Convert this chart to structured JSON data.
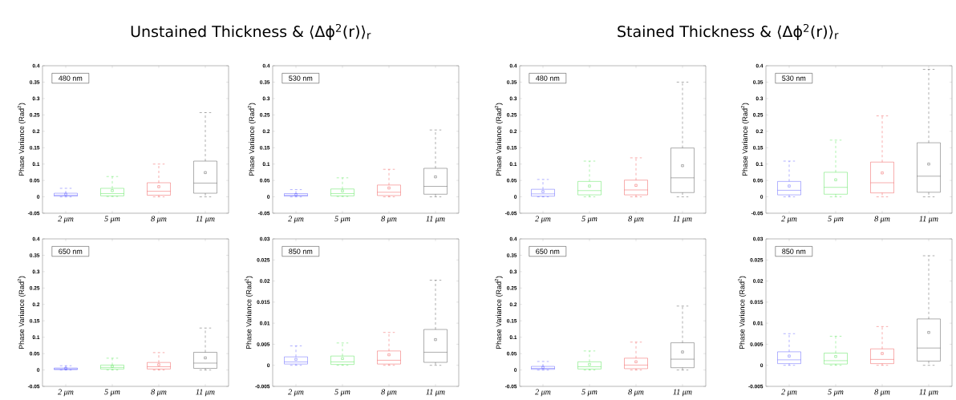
{
  "chart_data": [
    {
      "type": "box",
      "title": "Unstained Thickness & ⟨Δϕ$^{2}$(r)⟩$_{r}$",
      "ylabel": "Phase Variance (Rad$^{2}$)",
      "annotations": [
        "480 nm"
      ],
      "categories": [
        "2 μm",
        "5 μm",
        "8 μm",
        "11 μm"
      ],
      "colors": [
        "#3f3fff",
        "#33dd33",
        "#ee3333",
        "#333333"
      ],
      "marker": "square",
      "ylim": [
        -0.05,
        0.4
      ],
      "yticks": [
        -0.05,
        0,
        0.05,
        0.1,
        0.15,
        0.2,
        0.25,
        0.3,
        0.35,
        0.4
      ],
      "boxes": [
        {
          "low": 0,
          "q1": 0.002,
          "median": 0.005,
          "q3": 0.011,
          "high": 0.026,
          "mean": 0.008
        },
        {
          "low": 0.001,
          "q1": 0.003,
          "median": 0.01,
          "q3": 0.026,
          "high": 0.062,
          "mean": 0.019
        },
        {
          "low": 0,
          "q1": 0.005,
          "median": 0.017,
          "q3": 0.043,
          "high": 0.1,
          "mean": 0.031
        },
        {
          "low": 0,
          "q1": 0.011,
          "median": 0.042,
          "q3": 0.109,
          "high": 0.257,
          "mean": 0.074
        }
      ]
    },
    {
      "type": "box",
      "ylabel": "Phase Variance (Rad$^{2}$)",
      "annotations": [
        "530 nm"
      ],
      "categories": [
        "2 μm",
        "5 μm",
        "8 μm",
        "11 μm"
      ],
      "colors": [
        "#3f3fff",
        "#33dd33",
        "#ee3333",
        "#333333"
      ],
      "marker": "square",
      "ylim": [
        -0.05,
        0.4
      ],
      "yticks": [
        -0.05,
        0,
        0.05,
        0.1,
        0.15,
        0.2,
        0.25,
        0.3,
        0.35,
        0.4
      ],
      "boxes": [
        {
          "low": 0,
          "q1": 0.002,
          "median": 0.005,
          "q3": 0.01,
          "high": 0.022,
          "mean": 0.007
        },
        {
          "low": 0.001,
          "q1": 0.003,
          "median": 0.01,
          "q3": 0.024,
          "high": 0.058,
          "mean": 0.018
        },
        {
          "low": 0,
          "q1": 0.004,
          "median": 0.014,
          "q3": 0.036,
          "high": 0.084,
          "mean": 0.027
        },
        {
          "low": 0,
          "q1": 0.008,
          "median": 0.032,
          "q3": 0.087,
          "high": 0.204,
          "mean": 0.061
        }
      ]
    },
    {
      "type": "box",
      "title": "Stained Thickness & ⟨Δϕ$^{2}$(r)⟩$_{r}$",
      "ylabel": "Phase Variance (Rad$^{2}$)",
      "annotations": [
        "480 nm"
      ],
      "categories": [
        "2 μm",
        "5 μm",
        "8 μm",
        "11 μm"
      ],
      "colors": [
        "#3f3fff",
        "#33dd33",
        "#ee3333",
        "#333333"
      ],
      "marker": "square",
      "ylim": [
        -0.05,
        0.4
      ],
      "yticks": [
        -0.05,
        0,
        0.05,
        0.1,
        0.15,
        0.2,
        0.25,
        0.3,
        0.35,
        0.4
      ],
      "boxes": [
        {
          "low": 0,
          "q1": 0.002,
          "median": 0.009,
          "q3": 0.023,
          "high": 0.053,
          "mean": 0.016
        },
        {
          "low": 0,
          "q1": 0.006,
          "median": 0.019,
          "q3": 0.047,
          "high": 0.109,
          "mean": 0.033
        },
        {
          "low": 0,
          "q1": 0.006,
          "median": 0.021,
          "q3": 0.051,
          "high": 0.119,
          "mean": 0.035
        },
        {
          "low": 0,
          "q1": 0.013,
          "median": 0.058,
          "q3": 0.149,
          "high": 0.35,
          "mean": 0.095
        }
      ]
    },
    {
      "type": "box",
      "ylabel": "Phase Variance (Rad$^{2}$)",
      "annotations": [
        "530 nm"
      ],
      "categories": [
        "2 μm",
        "5 μm",
        "8 μm",
        "11 μm"
      ],
      "colors": [
        "#3f3fff",
        "#33dd33",
        "#ee3333",
        "#333333"
      ],
      "marker": "square",
      "ylim": [
        -0.05,
        0.4
      ],
      "yticks": [
        -0.05,
        0,
        0.05,
        0.1,
        0.15,
        0.2,
        0.25,
        0.3,
        0.35,
        0.4
      ],
      "boxes": [
        {
          "low": 0,
          "q1": 0.006,
          "median": 0.02,
          "q3": 0.047,
          "high": 0.109,
          "mean": 0.033
        },
        {
          "low": 0,
          "q1": 0.008,
          "median": 0.029,
          "q3": 0.075,
          "high": 0.173,
          "mean": 0.052
        },
        {
          "low": 0,
          "q1": 0.012,
          "median": 0.043,
          "q3": 0.106,
          "high": 0.247,
          "mean": 0.073
        },
        {
          "low": 0,
          "q1": 0.014,
          "median": 0.063,
          "q3": 0.165,
          "high": 0.389,
          "mean": 0.1
        }
      ]
    },
    {
      "type": "box",
      "ylabel": "Phase Variance (Rad$^{2}$)",
      "annotations": [
        "650 nm"
      ],
      "categories": [
        "2 μm",
        "5 μm",
        "8 μm",
        "11 μm"
      ],
      "colors": [
        "#3f3fff",
        "#33dd33",
        "#ee3333",
        "#333333"
      ],
      "marker": "square",
      "ylim": [
        -0.05,
        0.4
      ],
      "yticks": [
        -0.05,
        0,
        0.05,
        0.1,
        0.15,
        0.2,
        0.25,
        0.3,
        0.35,
        0.4
      ],
      "boxes": [
        {
          "low": 0,
          "q1": 0.001,
          "median": 0.003,
          "q3": 0.006,
          "high": 0.013,
          "mean": 0.005
        },
        {
          "low": 0,
          "q1": 0.003,
          "median": 0.008,
          "q3": 0.015,
          "high": 0.036,
          "mean": 0.011
        },
        {
          "low": 0,
          "q1": 0.003,
          "median": 0.01,
          "q3": 0.023,
          "high": 0.053,
          "mean": 0.016
        },
        {
          "low": 0,
          "q1": 0.005,
          "median": 0.021,
          "q3": 0.054,
          "high": 0.128,
          "mean": 0.037
        }
      ]
    },
    {
      "type": "box",
      "ylabel": "Phase Variance (Rad$^{2}$)",
      "annotations": [
        "850 nm"
      ],
      "categories": [
        "2 μm",
        "5 μm",
        "8 μm",
        "11 μm"
      ],
      "colors": [
        "#3f3fff",
        "#33dd33",
        "#ee3333",
        "#333333"
      ],
      "marker": "square",
      "ylim": [
        -0.005,
        0.03
      ],
      "yticks": [
        -0.005,
        0,
        0.005,
        0.01,
        0.015,
        0.02,
        0.025,
        0.03
      ],
      "boxes": [
        {
          "low": 0,
          "q1": 0.0003,
          "median": 0.0008,
          "q3": 0.002,
          "high": 0.0046,
          "mean": 0.0014
        },
        {
          "low": 0,
          "q1": 0.0002,
          "median": 0.0008,
          "q3": 0.0022,
          "high": 0.0053,
          "mean": 0.0016
        },
        {
          "low": 0,
          "q1": 0.0003,
          "median": 0.0012,
          "q3": 0.0034,
          "high": 0.0078,
          "mean": 0.0025
        },
        {
          "low": 0,
          "q1": 0.0007,
          "median": 0.0031,
          "q3": 0.0085,
          "high": 0.0202,
          "mean": 0.0061
        }
      ]
    },
    {
      "type": "box",
      "ylabel": "Phase Variance (Rad$^{2}$)",
      "annotations": [
        "650 nm"
      ],
      "categories": [
        "2 μm",
        "5 μm",
        "8 μm",
        "11 μm"
      ],
      "colors": [
        "#3f3fff",
        "#33dd33",
        "#ee3333",
        "#333333"
      ],
      "marker": "square",
      "ylim": [
        -0.05,
        0.4
      ],
      "yticks": [
        -0.05,
        0,
        0.05,
        0.1,
        0.15,
        0.2,
        0.25,
        0.3,
        0.35,
        0.4
      ],
      "boxes": [
        {
          "low": 0,
          "q1": 0.002,
          "median": 0.005,
          "q3": 0.011,
          "high": 0.026,
          "mean": 0.008
        },
        {
          "low": 0,
          "q1": 0.003,
          "median": 0.01,
          "q3": 0.025,
          "high": 0.058,
          "mean": 0.017
        },
        {
          "low": 0,
          "q1": 0.004,
          "median": 0.015,
          "q3": 0.036,
          "high": 0.085,
          "mean": 0.025
        },
        {
          "low": 0,
          "q1": 0.007,
          "median": 0.033,
          "q3": 0.083,
          "high": 0.195,
          "mean": 0.055
        }
      ]
    },
    {
      "type": "box",
      "ylabel": "Phase Variance (Rad$^{2}$)",
      "annotations": [
        "850 nm"
      ],
      "categories": [
        "2 μm",
        "5 μm",
        "8 μm",
        "11 μm"
      ],
      "colors": [
        "#3f3fff",
        "#33dd33",
        "#ee3333",
        "#333333"
      ],
      "marker": "square",
      "ylim": [
        -0.005,
        0.03
      ],
      "yticks": [
        -0.005,
        0,
        0.005,
        0.01,
        0.015,
        0.02,
        0.025,
        0.03
      ],
      "boxes": [
        {
          "low": 0,
          "q1": 0.0004,
          "median": 0.0013,
          "q3": 0.0032,
          "high": 0.0075,
          "mean": 0.0022
        },
        {
          "low": 0,
          "q1": 0.0003,
          "median": 0.0011,
          "q3": 0.0029,
          "high": 0.0069,
          "mean": 0.0021
        },
        {
          "low": 0,
          "q1": 0.0004,
          "median": 0.0014,
          "q3": 0.0039,
          "high": 0.0092,
          "mean": 0.0028
        },
        {
          "low": 0,
          "q1": 0.001,
          "median": 0.0041,
          "q3": 0.011,
          "high": 0.026,
          "mean": 0.0078
        }
      ]
    }
  ]
}
